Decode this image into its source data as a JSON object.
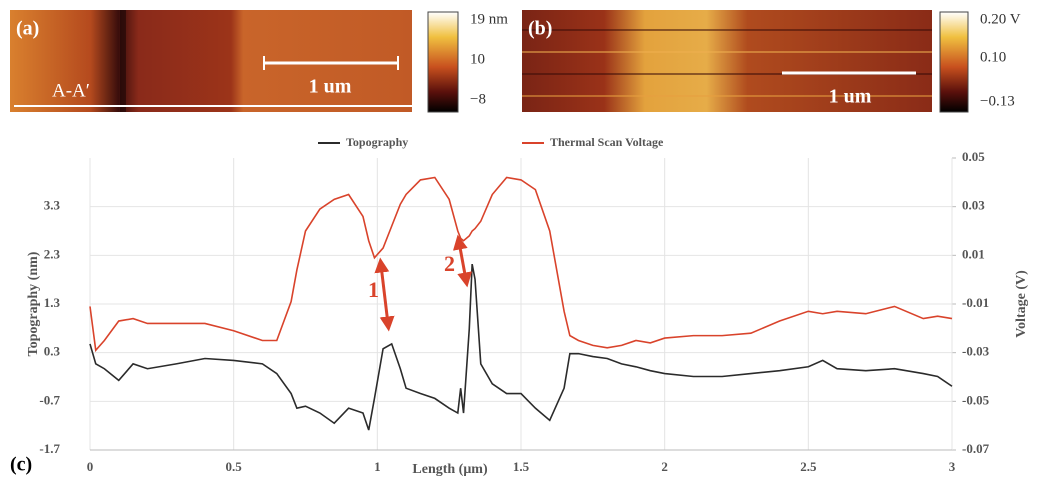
{
  "panels": {
    "a": {
      "label": "(a)",
      "section": "A-A′",
      "scale_bar": "1 um",
      "colorbar": [
        "19 nm",
        "10",
        "−8"
      ]
    },
    "b": {
      "label": "(b)",
      "scale_bar": "1 um",
      "colorbar": [
        "0.20 V",
        "0.10",
        "−0.13"
      ]
    }
  },
  "chart_data": {
    "type": "line",
    "panel_label": "(c)",
    "xlabel": "Length (μm)",
    "ylabel": "Topography (nm)",
    "y2label": "Voltage (V)",
    "annotations": [
      "1",
      "2"
    ],
    "x": [
      0,
      0.02,
      0.05,
      0.1,
      0.15,
      0.2,
      0.3,
      0.4,
      0.5,
      0.6,
      0.65,
      0.7,
      0.72,
      0.75,
      0.8,
      0.85,
      0.9,
      0.95,
      0.97,
      0.99,
      1.02,
      1.05,
      1.08,
      1.1,
      1.15,
      1.2,
      1.25,
      1.28,
      1.29,
      1.3,
      1.32,
      1.33,
      1.34,
      1.36,
      1.4,
      1.45,
      1.5,
      1.55,
      1.6,
      1.65,
      1.67,
      1.7,
      1.75,
      1.8,
      1.85,
      1.9,
      1.95,
      2.0,
      2.1,
      2.2,
      2.3,
      2.4,
      2.5,
      2.55,
      2.6,
      2.7,
      2.8,
      2.9,
      2.95,
      3.0
    ],
    "series": [
      {
        "name": "Topography",
        "color": "#2b2b2b",
        "values": [
          0.48,
          0.07,
          -0.03,
          -0.27,
          0.07,
          -0.03,
          0.07,
          0.18,
          0.14,
          0.07,
          -0.13,
          -0.54,
          -0.84,
          -0.8,
          -0.94,
          -1.15,
          -0.84,
          -0.94,
          -1.29,
          -0.64,
          0.38,
          0.48,
          -0.03,
          -0.43,
          -0.54,
          -0.64,
          -0.84,
          -0.94,
          -0.43,
          -0.94,
          0.79,
          2.12,
          1.81,
          0.07,
          -0.34,
          -0.54,
          -0.54,
          -0.84,
          -1.09,
          -0.43,
          0.28,
          0.28,
          0.22,
          0.18,
          0.07,
          0.01,
          -0.07,
          -0.13,
          -0.19,
          -0.19,
          -0.13,
          -0.07,
          0.01,
          0.14,
          -0.03,
          -0.07,
          -0.03,
          -0.13,
          -0.19,
          -0.39
        ]
      },
      {
        "name": "Thermal Scan Voltage",
        "color": "#d9432b",
        "axis": "y2",
        "values": [
          -0.011,
          -0.029,
          -0.025,
          -0.017,
          -0.016,
          -0.018,
          -0.018,
          -0.018,
          -0.021,
          -0.025,
          -0.025,
          -0.009,
          0.004,
          0.02,
          0.029,
          0.033,
          0.035,
          0.026,
          0.016,
          0.009,
          0.013,
          0.022,
          0.031,
          0.035,
          0.041,
          0.042,
          0.033,
          0.02,
          0.017,
          0.016,
          0.018,
          0.02,
          0.021,
          0.024,
          0.035,
          0.042,
          0.041,
          0.037,
          0.02,
          -0.013,
          -0.023,
          -0.025,
          -0.027,
          -0.028,
          -0.027,
          -0.025,
          -0.026,
          -0.024,
          -0.023,
          -0.023,
          -0.022,
          -0.017,
          -0.013,
          -0.014,
          -0.013,
          -0.014,
          -0.011,
          -0.016,
          -0.015,
          -0.016
        ]
      }
    ],
    "xlim": [
      0,
      3
    ],
    "xticks": [
      0,
      0.5,
      1,
      1.5,
      2,
      2.5,
      3
    ],
    "ylim": [
      -1.7,
      4.3
    ],
    "yticks": [
      -1.7,
      -0.7,
      0.3,
      1.3,
      2.3,
      3.3
    ],
    "y2lim": [
      -0.07,
      0.05
    ],
    "y2ticks": [
      -0.07,
      -0.05,
      -0.03,
      -0.01,
      0.01,
      0.03,
      0.05
    ],
    "grid": true
  }
}
